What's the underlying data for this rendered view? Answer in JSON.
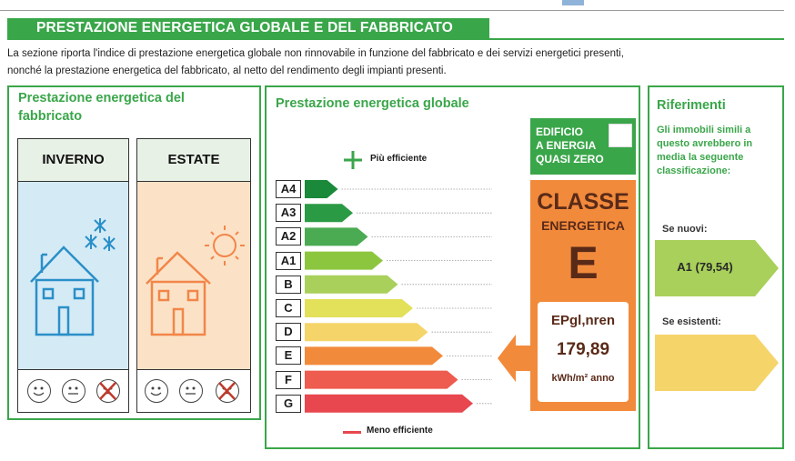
{
  "header": {
    "title": "PRESTAZIONE ENERGETICA GLOBALE  E DEL FABBRICATO",
    "intro_line1": "La sezione riporta l'indice di prestazione energetica globale non rinnovabile in funzione del fabbricato e dei servizi energetici presenti,",
    "intro_line2": "nonché la prestazione energetica del fabbricato, al netto del rendimento degli impianti presenti."
  },
  "fabbricato": {
    "title_line1": "Prestazione energetica del",
    "title_line2": "fabbricato",
    "winter_label": "INVERNO",
    "summer_label": "ESTATE"
  },
  "globale": {
    "title": "Prestazione energetica globale",
    "more_efficient": "Più efficiente",
    "less_efficient": "Meno efficiente",
    "nzeb_line1": "EDIFICIO",
    "nzeb_line2": "A ENERGIA",
    "nzeb_line3": "QUASI ZERO",
    "class_word1": "CLASSE",
    "class_word2": "ENERGETICA",
    "class_value": "E",
    "index_label": "EPgl,nren",
    "index_value": "179,89",
    "index_unit": "kWh/m² anno",
    "classes": [
      {
        "label": "A4",
        "color": "#1a8a3a",
        "level": 1
      },
      {
        "label": "A3",
        "color": "#2a9a44",
        "level": 2
      },
      {
        "label": "A2",
        "color": "#4aab52",
        "level": 3
      },
      {
        "label": "A1",
        "color": "#8cc63f",
        "level": 4
      },
      {
        "label": "B",
        "color": "#a8d05a",
        "level": 5
      },
      {
        "label": "C",
        "color": "#e3e05a",
        "level": 6
      },
      {
        "label": "D",
        "color": "#f5d46a",
        "level": 7
      },
      {
        "label": "E",
        "color": "#f28a3c",
        "level": 8
      },
      {
        "label": "F",
        "color": "#ee5b4f",
        "level": 9
      },
      {
        "label": "G",
        "color": "#e8474f",
        "level": 10
      }
    ]
  },
  "riferimenti": {
    "title": "Riferimenti",
    "text_line1": "Gli immobili simili a",
    "text_line2": "questo avrebbero in",
    "text_line3": "media la seguente",
    "text_line4": "classificazione:",
    "new_label": "Se nuovi:",
    "new_value": "A1 (79,54)",
    "existing_label": "Se esistenti:",
    "existing_value": ""
  },
  "colors": {
    "accent_green": "#3aa64a",
    "class_box_orange": "#f28a3c",
    "winter_blue": "#2a8fc8",
    "summer_orange": "#f2864a"
  }
}
